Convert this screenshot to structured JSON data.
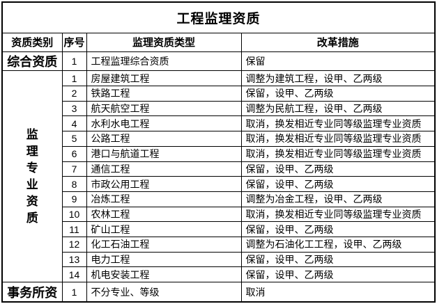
{
  "title": "工程监理资质",
  "columns": [
    "资质类别",
    "序号",
    "监理资质类型",
    "改革措施"
  ],
  "sections": [
    {
      "category": "综合资质",
      "vertical": false,
      "rows": [
        {
          "no": "1",
          "type": "工程监理综合资质",
          "measure": "保留"
        }
      ]
    },
    {
      "category": "监理专业资质",
      "vertical": true,
      "rows": [
        {
          "no": "1",
          "type": "房屋建筑工程",
          "measure": "调整为建筑工程，设甲、乙两级"
        },
        {
          "no": "2",
          "type": "铁路工程",
          "measure": "保留，设甲、乙两级"
        },
        {
          "no": "3",
          "type": "航天航空工程",
          "measure": "调整为民航工程，设甲、乙两级"
        },
        {
          "no": "4",
          "type": "水利水电工程",
          "measure": "取消，换发相近专业同等级监理专业资质"
        },
        {
          "no": "5",
          "type": "公路工程",
          "measure": "取消，换发相近专业同等级监理专业资质"
        },
        {
          "no": "6",
          "type": "港口与航道工程",
          "measure": "取消，换发相近专业同等级监理专业资质"
        },
        {
          "no": "7",
          "type": "通信工程",
          "measure": "保留，设甲、乙两级"
        },
        {
          "no": "8",
          "type": "市政公用工程",
          "measure": "保留，设甲、乙两级"
        },
        {
          "no": "9",
          "type": "冶炼工程",
          "measure": "调整为冶金工程，设甲、乙两级"
        },
        {
          "no": "10",
          "type": "农林工程",
          "measure": "取消，换发相近专业同等级监理专业资质"
        },
        {
          "no": "11",
          "type": "矿山工程",
          "measure": "保留，设甲、乙两级"
        },
        {
          "no": "12",
          "type": "化工石油工程",
          "measure": "调整为石油化工工程，设甲、乙两级"
        },
        {
          "no": "13",
          "type": "电力工程",
          "measure": "保留，设甲、乙两级"
        },
        {
          "no": "14",
          "type": "机电安装工程",
          "measure": "保留，设甲、乙两级"
        }
      ]
    },
    {
      "category": "事务所资",
      "vertical": false,
      "rows": [
        {
          "no": "1",
          "type": "不分专业、等级",
          "measure": "取消"
        }
      ]
    }
  ],
  "colors": {
    "border": "#000000",
    "text": "#000000",
    "background": "#ffffff"
  },
  "chart_data": {
    "type": "table",
    "title": "工程监理资质",
    "columns": [
      "资质类别",
      "序号",
      "监理资质类型",
      "改革措施"
    ],
    "rows": [
      [
        "综合资质",
        "1",
        "工程监理综合资质",
        "保留"
      ],
      [
        "监理专业资质",
        "1",
        "房屋建筑工程",
        "调整为建筑工程，设甲、乙两级"
      ],
      [
        "",
        "2",
        "铁路工程",
        "保留，设甲、乙两级"
      ],
      [
        "",
        "3",
        "航天航空工程",
        "调整为民航工程，设甲、乙两级"
      ],
      [
        "",
        "4",
        "水利水电工程",
        "取消，换发相近专业同等级监理专业资质"
      ],
      [
        "",
        "5",
        "公路工程",
        "取消，换发相近专业同等级监理专业资质"
      ],
      [
        "",
        "6",
        "港口与航道工程",
        "取消，换发相近专业同等级监理专业资质"
      ],
      [
        "",
        "7",
        "通信工程",
        "保留，设甲、乙两级"
      ],
      [
        "",
        "8",
        "市政公用工程",
        "保留，设甲、乙两级"
      ],
      [
        "",
        "9",
        "冶炼工程",
        "调整为冶金工程，设甲、乙两级"
      ],
      [
        "",
        "10",
        "农林工程",
        "取消，换发相近专业同等级监理专业资质"
      ],
      [
        "",
        "11",
        "矿山工程",
        "保留，设甲、乙两级"
      ],
      [
        "",
        "12",
        "化工石油工程",
        "调整为石油化工工程，设甲、乙两级"
      ],
      [
        "",
        "13",
        "电力工程",
        "保留，设甲、乙两级"
      ],
      [
        "",
        "14",
        "机电安装工程",
        "保留，设甲、乙两级"
      ],
      [
        "事务所资",
        "1",
        "不分专业、等级",
        "取消"
      ]
    ]
  }
}
